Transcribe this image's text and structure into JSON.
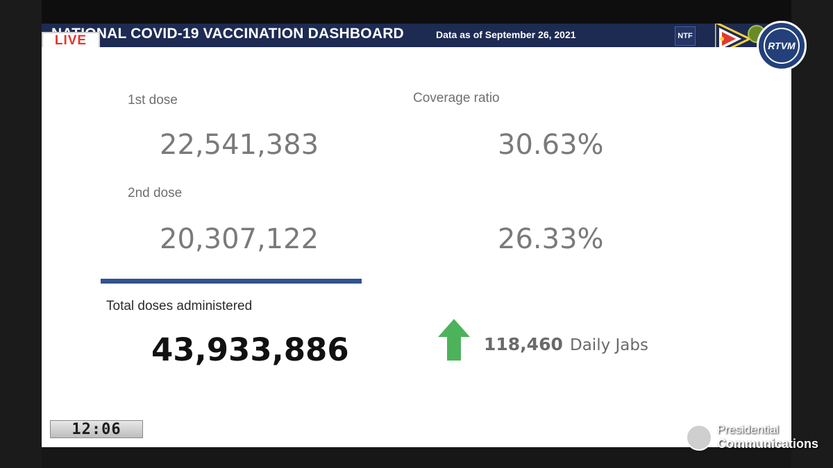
{
  "broadcast": {
    "live_label": "LIVE",
    "clock": "12:06",
    "network_logo_text": "RTVM",
    "footer_line1": "Presidential",
    "footer_line2": "Communications"
  },
  "header": {
    "title": "NATIONAL COVID-19 VACCINATION DASHBOARD",
    "date_text": "Data as of September 26, 2021",
    "ntf_logo_text": "NTF"
  },
  "dashboard": {
    "first_dose": {
      "label": "1st dose",
      "value": "22,541,383",
      "coverage": "30.63%"
    },
    "second_dose": {
      "label": "2nd dose",
      "value": "20,307,122",
      "coverage": "26.33%"
    },
    "coverage_label": "Coverage ratio",
    "total": {
      "label": "Total doses administered",
      "value": "43,933,886"
    },
    "daily_jabs": {
      "value": "118,460",
      "label": "Daily Jabs",
      "trend": "up"
    }
  },
  "colors": {
    "header_bg": "#1d2a52",
    "accent_line": "#32538f",
    "arrow_green": "#4cb35a",
    "live_red": "#e3342a"
  }
}
